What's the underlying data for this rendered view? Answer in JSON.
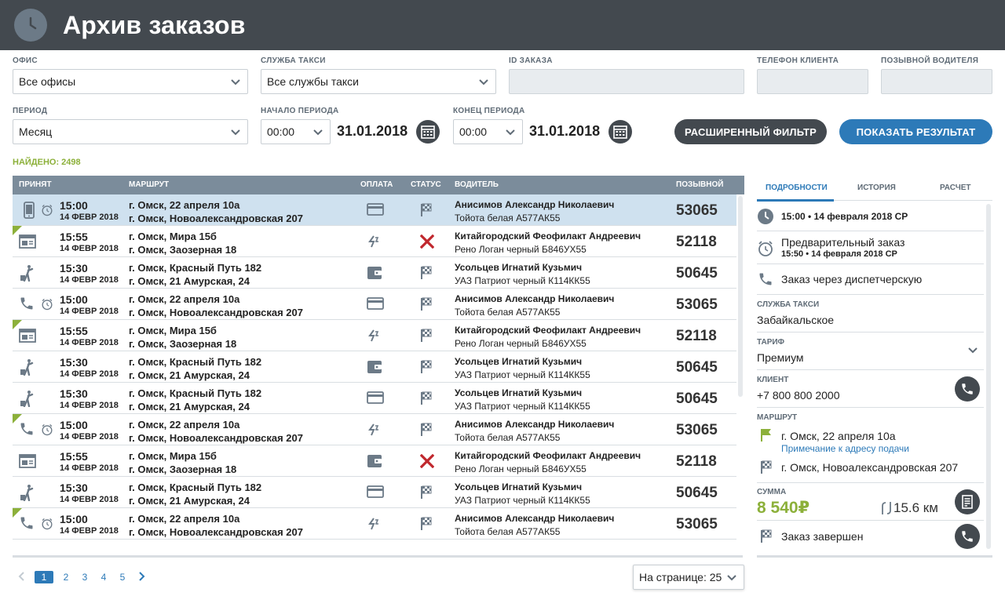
{
  "header": {
    "title": "Архив заказов"
  },
  "filters": {
    "office_label": "ОФИС",
    "office_value": "Все офисы",
    "service_label": "СЛУЖБА ТАКСИ",
    "service_value": "Все службы такси",
    "order_id_label": "ID ЗАКАЗА",
    "phone_label": "ТЕЛЕФОН КЛИЕНТА",
    "callsign_label": "ПОЗЫВНОЙ ВОДИТЕЛЯ",
    "period_label": "ПЕРИОД",
    "period_value": "Месяц",
    "start_label": "НАЧАЛО ПЕРИОДА",
    "start_time": "00:00",
    "start_date": "31.01.2018",
    "end_label": "КОНЕЦ ПЕРИОДА",
    "end_time": "00:00",
    "end_date": "31.01.2018",
    "advanced_button": "РАСШИРЕННЫЙ ФИЛЬТР",
    "show_button": "ПОКАЗАТЬ РЕЗУЛЬТАТ"
  },
  "found": "НАЙДЕНО: 2498",
  "table": {
    "columns": [
      "ПРИНЯТ",
      "МАРШРУТ",
      "ОПЛАТА",
      "СТАТУС",
      "ВОДИТЕЛЬ",
      "ПОЗЫВНОЙ"
    ],
    "rows": [
      {
        "source": "mobile",
        "alarm": true,
        "corner": false,
        "selected": true,
        "time": "15:00",
        "date": "14 ФЕВР 2018",
        "from": "г. Омск, 22 апреля 10а",
        "to": "г. Омск, Новоалександровская 207",
        "payment": "card",
        "status": "finished",
        "driver": "Анисимов Александр Николаевич",
        "car": "Тойота белая А577АК55",
        "callsign": "53065"
      },
      {
        "source": "web",
        "alarm": false,
        "corner": true,
        "selected": false,
        "time": "15:55",
        "date": "14 ФЕВР 2018",
        "from": "г. Омск, Мира 15б",
        "to": "г. Омск, Заозерная 18",
        "payment": "transfer",
        "status": "cancelled",
        "driver": "Китайгородский Феофилакт Андреевич",
        "car": "Рено Логан черный Б846УХ55",
        "callsign": "52118"
      },
      {
        "source": "street",
        "alarm": false,
        "corner": false,
        "selected": false,
        "time": "15:30",
        "date": "14 ФЕВР 2018",
        "from": "г. Омск, Красный Путь 182",
        "to": "г. Омск, 21 Амурская, 24",
        "payment": "wallet",
        "status": "finished",
        "driver": "Усольцев Игнатий Кузьмич",
        "car": "УАЗ Патриот черный К114КК55",
        "callsign": "50645"
      },
      {
        "source": "phone",
        "alarm": true,
        "corner": false,
        "selected": false,
        "time": "15:00",
        "date": "14 ФЕВР 2018",
        "from": "г. Омск, 22 апреля 10а",
        "to": "г. Омск, Новоалександровская 207",
        "payment": "card",
        "status": "finished",
        "driver": "Анисимов Александр Николаевич",
        "car": "Тойота белая А577АК55",
        "callsign": "53065"
      },
      {
        "source": "web",
        "alarm": false,
        "corner": true,
        "selected": false,
        "time": "15:55",
        "date": "14 ФЕВР 2018",
        "from": "г. Омск, Мира 15б",
        "to": "г. Омск, Заозерная 18",
        "payment": "transfer",
        "status": "finished",
        "driver": "Китайгородский Феофилакт Андреевич",
        "car": "Рено Логан черный Б846УХ55",
        "callsign": "52118"
      },
      {
        "source": "street",
        "alarm": false,
        "corner": false,
        "selected": false,
        "time": "15:30",
        "date": "14 ФЕВР 2018",
        "from": "г. Омск, Красный Путь 182",
        "to": "г. Омск, 21 Амурская, 24",
        "payment": "wallet",
        "status": "finished",
        "driver": "Усольцев Игнатий Кузьмич",
        "car": "УАЗ Патриот черный К114КК55",
        "callsign": "50645"
      },
      {
        "source": "street",
        "alarm": false,
        "corner": false,
        "selected": false,
        "time": "15:30",
        "date": "14 ФЕВР 2018",
        "from": "г. Омск, Красный Путь 182",
        "to": "г. Омск, 21 Амурская, 24",
        "payment": "card",
        "status": "finished",
        "driver": "Усольцев Игнатий Кузьмич",
        "car": "УАЗ Патриот черный К114КК55",
        "callsign": "50645"
      },
      {
        "source": "phone",
        "alarm": true,
        "corner": true,
        "selected": false,
        "time": "15:00",
        "date": "14 ФЕВР 2018",
        "from": "г. Омск, 22 апреля 10а",
        "to": "г. Омск, Новоалександровская 207",
        "payment": "transfer",
        "status": "finished",
        "driver": "Анисимов Александр Николаевич",
        "car": "Тойота белая А577АК55",
        "callsign": "53065"
      },
      {
        "source": "web",
        "alarm": false,
        "corner": false,
        "selected": false,
        "time": "15:55",
        "date": "14 ФЕВР 2018",
        "from": "г. Омск, Мира 15б",
        "to": "г. Омск, Заозерная 18",
        "payment": "wallet",
        "status": "cancelled",
        "driver": "Китайгородский Феофилакт Андреевич",
        "car": "Рено Логан черный Б846УХ55",
        "callsign": "52118"
      },
      {
        "source": "street",
        "alarm": false,
        "corner": false,
        "selected": false,
        "time": "15:30",
        "date": "14 ФЕВР 2018",
        "from": "г. Омск, Красный Путь 182",
        "to": "г. Омск, 21 Амурская, 24",
        "payment": "card",
        "status": "finished",
        "driver": "Усольцев Игнатий Кузьмич",
        "car": "УАЗ Патриот черный К114КК55",
        "callsign": "50645"
      },
      {
        "source": "phone",
        "alarm": true,
        "corner": true,
        "selected": false,
        "time": "15:00",
        "date": "14 ФЕВР 2018",
        "from": "г. Омск, 22 апреля 10а",
        "to": "г. Омск, Новоалександровская 207",
        "payment": "transfer",
        "status": "finished",
        "driver": "Анисимов Александр Николаевич",
        "car": "Тойота белая А577АК55",
        "callsign": "53065"
      }
    ]
  },
  "pagination": {
    "pages": [
      "1",
      "2",
      "3",
      "4",
      "5"
    ],
    "current": "1",
    "per_page": "На странице: 25"
  },
  "details": {
    "tabs": [
      "ПОДРОБНОСТИ",
      "ИСТОРИЯ",
      "РАСЧЕТ"
    ],
    "accepted": "15:00 • 14 февраля 2018 СР",
    "preorder": "Предварительный заказ",
    "preorder_time": "15:50 • 14 февраля 2018 СР",
    "source": "Заказ через диспетчерскую",
    "service_label": "СЛУЖБА ТАКСИ",
    "service": "Забайкальское",
    "tariff_label": "ТАРИФ",
    "tariff": "Премиум",
    "client_label": "КЛИЕНТ",
    "client": "+7 800 800 2000",
    "route_label": "МАРШРУТ",
    "route_from": "г. Омск, 22 апреля 10а",
    "route_note": "Примечание к адресу подачи",
    "route_to": "г. Омск, Новоалександровская 207",
    "sum_label": "СУММА",
    "sum": "8 540₽",
    "distance": "15.6 км",
    "status": "Заказ завершен"
  },
  "colors": {
    "header_bg": "#43494f",
    "accent_blue": "#2d7ab8",
    "accent_green": "#8cb03a",
    "cancel_red": "#c0272d",
    "table_header": "#7b8c9b",
    "selected_row": "#cfe1ef"
  }
}
